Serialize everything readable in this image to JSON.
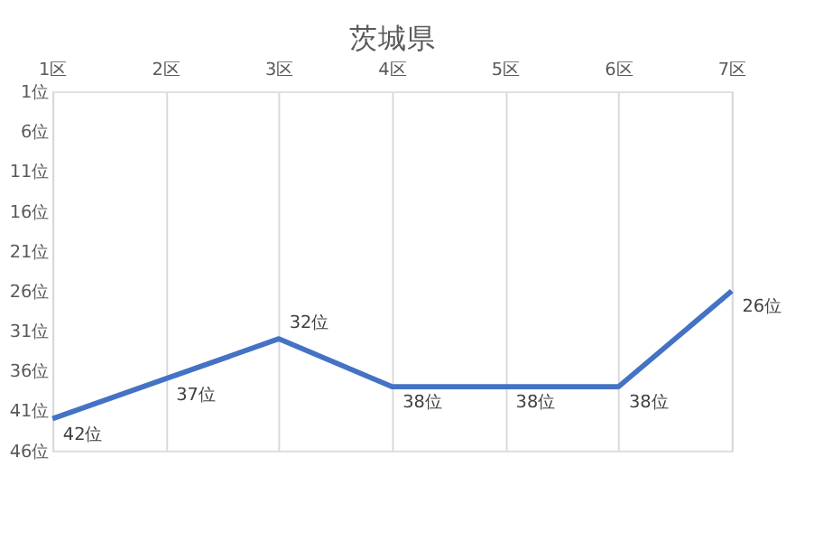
{
  "chart_data": {
    "type": "line",
    "title": "茨城県",
    "categories": [
      "1区",
      "2区",
      "3区",
      "4区",
      "5区",
      "6区",
      "7区"
    ],
    "series": [
      {
        "color": "#4472c4",
        "values": [
          42,
          37,
          32,
          38,
          38,
          38,
          26
        ],
        "value_labels": [
          "42位",
          "37位",
          "32位",
          "38位",
          "38位",
          "38位",
          "26位"
        ]
      }
    ],
    "ylim": [
      46,
      1
    ],
    "yticks": [
      {
        "value": 1,
        "label": "1位"
      },
      {
        "value": 6,
        "label": "6位"
      },
      {
        "value": 11,
        "label": "11位"
      },
      {
        "value": 16,
        "label": "16位"
      },
      {
        "value": 21,
        "label": "21位"
      },
      {
        "value": 26,
        "label": "26位"
      },
      {
        "value": 31,
        "label": "31位"
      },
      {
        "value": 36,
        "label": "36位"
      },
      {
        "value": 41,
        "label": "41位"
      },
      {
        "value": 46,
        "label": "46位"
      }
    ],
    "grid": "x",
    "legend": false,
    "marker": "none",
    "line_style": "solid"
  }
}
